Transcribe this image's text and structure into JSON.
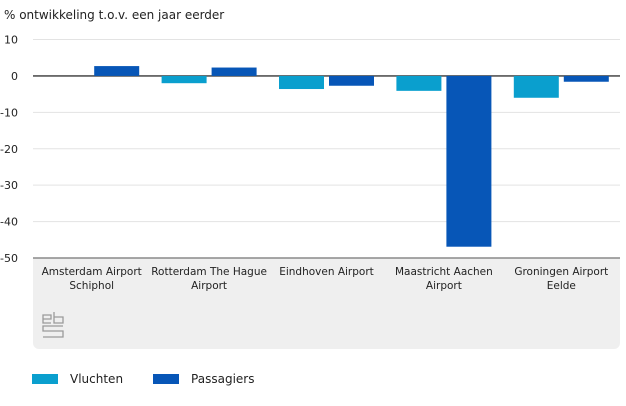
{
  "chart_data": {
    "type": "bar",
    "title": "",
    "ylabel": "% ontwikkeling t.o.v. een jaar eerder",
    "xlabel": "",
    "categories": [
      [
        "Amsterdam Airport",
        "Schiphol"
      ],
      [
        "Rotterdam The Hague",
        "Airport"
      ],
      [
        "Eindhoven Airport"
      ],
      [
        "Maastricht Aachen",
        "Airport"
      ],
      [
        "Groningen Airport",
        "Eelde"
      ]
    ],
    "series": [
      {
        "name": "Vluchten",
        "color": "#0a9fce",
        "values": [
          0.0,
          -2.0,
          -3.6,
          -4.1,
          -6.0
        ]
      },
      {
        "name": "Passagiers",
        "color": "#0756b7",
        "values": [
          2.7,
          2.3,
          -2.7,
          -46.9,
          -1.6
        ]
      }
    ],
    "ylim": [
      -50,
      10
    ],
    "yticks": [
      10,
      0,
      -10,
      -20,
      -30,
      -40,
      -50
    ],
    "grid": true,
    "legend_position": "bottom-left"
  },
  "branding": {
    "logo": "cbs-logo-icon"
  }
}
